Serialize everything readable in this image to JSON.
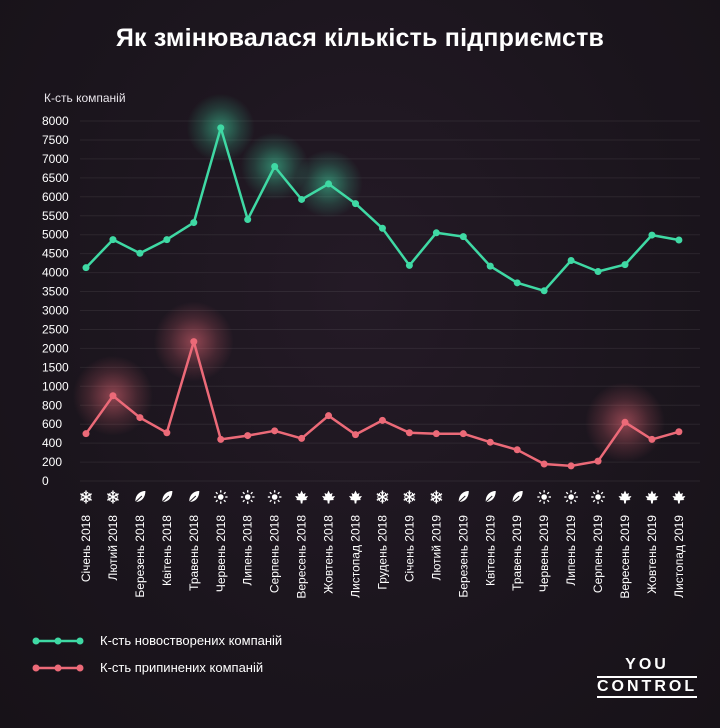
{
  "title": "Як змінювалася кількість підприємств",
  "chart_data": {
    "type": "line",
    "ylabel": "К-сть компаній",
    "ylim": [
      0,
      8000
    ],
    "yticks": [
      0,
      200,
      400,
      600,
      800,
      1000,
      1500,
      2000,
      2500,
      3000,
      3500,
      4000,
      4500,
      5000,
      5500,
      6000,
      6500,
      7000,
      7500,
      8000
    ],
    "categories": [
      "Січень 2018",
      "Лютий 2018",
      "Березень 2018",
      "Квітень 2018",
      "Травень 2018",
      "Червень 2018",
      "Липень 2018",
      "Серпень 2018",
      "Вересень 2018",
      "Жовтень 2018",
      "Листопад 2018",
      "Грудень 2018",
      "Січень 2019",
      "Лютий 2019",
      "Березень 2019",
      "Квітень 2019",
      "Травень 2019",
      "Червень 2019",
      "Липень 2019",
      "Серпень 2019",
      "Вересень 2019",
      "Жовтень 2019",
      "Листопад 2019"
    ],
    "season_icons": [
      "snowflake-icon",
      "snowflake-icon",
      "leaf-icon",
      "leaf-icon",
      "leaf-icon",
      "sun-icon",
      "sun-icon",
      "sun-icon",
      "maple-leaf-icon",
      "maple-leaf-icon",
      "maple-leaf-icon",
      "snowflake-icon",
      "snowflake-icon",
      "snowflake-icon",
      "leaf-icon",
      "leaf-icon",
      "leaf-icon",
      "sun-icon",
      "sun-icon",
      "sun-icon",
      "maple-leaf-icon",
      "maple-leaf-icon",
      "maple-leaf-icon"
    ],
    "series": [
      {
        "name": "К-сть новостворених компаній",
        "color": "#3fd9a4",
        "values": [
          4130,
          4870,
          4510,
          4870,
          5320,
          7820,
          5400,
          6800,
          5930,
          6340,
          5820,
          5170,
          4190,
          5050,
          4950,
          4170,
          3730,
          3520,
          4320,
          4030,
          4210,
          4990,
          4860
        ],
        "highlights": [
          5,
          7,
          9
        ]
      },
      {
        "name": "К-сть припинених компаній",
        "color": "#ec6a78",
        "values": [
          500,
          900,
          670,
          510,
          2180,
          440,
          480,
          530,
          450,
          690,
          490,
          640,
          510,
          500,
          500,
          410,
          330,
          180,
          160,
          210,
          620,
          440,
          520
        ],
        "highlights": [
          1,
          4,
          20
        ]
      }
    ],
    "legend_position": "bottom-left",
    "grid": true
  },
  "logo": {
    "line1": "YOU",
    "line2": "CONTROL"
  }
}
